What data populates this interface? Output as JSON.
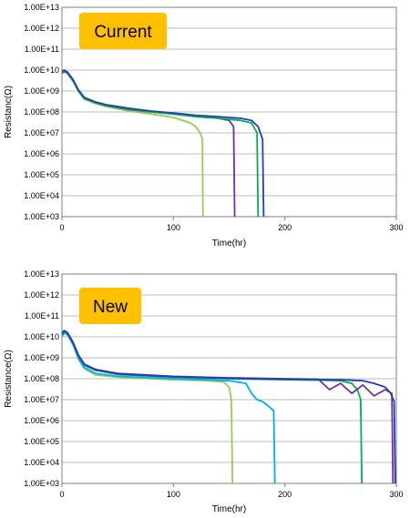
{
  "chart_data": [
    {
      "type": "line",
      "badge": "Current",
      "xlabel": "Time(hr)",
      "ylabel": "Resistanc(Ω)",
      "xlim": [
        0,
        300
      ],
      "x_ticks": [
        "0",
        "100",
        "200",
        "300"
      ],
      "ylim_log10": [
        3,
        13
      ],
      "y_ticks": [
        "1.00E+03",
        "1.00E+04",
        "1.00E+05",
        "1.00E+06",
        "1.00E+07",
        "1.00E+08",
        "1.00E+09",
        "1.00E+10",
        "1.00E+11",
        "1.00E+12",
        "1.00E+13"
      ],
      "grid": true,
      "series": [
        {
          "color": "#92d050",
          "x": [
            0,
            2,
            5,
            10,
            15,
            20,
            30,
            40,
            60,
            80,
            100,
            115,
            120,
            124,
            126,
            126.5
          ],
          "y": [
            8000000000,
            9000000000,
            7000000000,
            3000000000,
            900000000,
            400000000,
            250000000,
            180000000,
            110000000,
            80000000,
            55000000,
            30000000,
            20000000,
            10000000,
            5000000,
            1000
          ]
        },
        {
          "color": "#7030a0",
          "x": [
            0,
            2,
            5,
            10,
            15,
            20,
            30,
            40,
            60,
            80,
            100,
            120,
            140,
            150,
            154,
            155
          ],
          "y": [
            7000000000,
            8500000000,
            7000000000,
            3000000000,
            1000000000,
            450000000,
            280000000,
            200000000,
            130000000,
            100000000,
            80000000,
            60000000,
            50000000,
            40000000,
            20000000,
            1000
          ]
        },
        {
          "color": "#00b050",
          "x": [
            0,
            2,
            5,
            10,
            15,
            20,
            30,
            40,
            60,
            80,
            100,
            120,
            140,
            160,
            170,
            175,
            176
          ],
          "y": [
            8000000000,
            9500000000,
            7500000000,
            3200000000,
            1000000000,
            450000000,
            280000000,
            200000000,
            140000000,
            100000000,
            80000000,
            60000000,
            50000000,
            40000000,
            30000000,
            10000000,
            1000
          ]
        },
        {
          "color": "#1f3fbf",
          "x": [
            0,
            2,
            5,
            10,
            15,
            20,
            30,
            40,
            60,
            80,
            100,
            120,
            140,
            160,
            170,
            176,
            180,
            181
          ],
          "y": [
            9000000000,
            10000000000,
            8000000000,
            3500000000,
            1100000000,
            500000000,
            300000000,
            220000000,
            150000000,
            110000000,
            90000000,
            70000000,
            60000000,
            50000000,
            40000000,
            20000000,
            5000000,
            1000
          ]
        }
      ]
    },
    {
      "type": "line",
      "badge": "New",
      "xlabel": "Time(hr)",
      "ylabel": "Resistance(Ω)",
      "xlim": [
        0,
        300
      ],
      "x_ticks": [
        "0",
        "100",
        "200",
        "300"
      ],
      "ylim_log10": [
        3,
        13
      ],
      "y_ticks": [
        "1.00E+03",
        "1.00E+04",
        "1.00E+05",
        "1.00E+06",
        "1.00E+07",
        "1.00E+08",
        "1.00E+09",
        "1.00E+10",
        "1.00E+11",
        "1.00E+12",
        "1.00E+13"
      ],
      "grid": true,
      "series": [
        {
          "color": "#92d050",
          "x": [
            0,
            2,
            5,
            10,
            15,
            20,
            30,
            50,
            80,
            100,
            130,
            145,
            150,
            152,
            153
          ],
          "y": [
            10000000000,
            15000000000,
            12000000000,
            4000000000,
            800000000,
            300000000,
            150000000,
            120000000,
            100000000,
            90000000,
            80000000,
            70000000,
            40000000,
            10000000,
            1000
          ]
        },
        {
          "color": "#00b0f0",
          "x": [
            0,
            2,
            5,
            10,
            15,
            20,
            30,
            50,
            80,
            100,
            130,
            150,
            165,
            170,
            175,
            180,
            185,
            190,
            191
          ],
          "y": [
            10000000000,
            16000000000,
            13000000000,
            4500000000,
            900000000,
            350000000,
            180000000,
            130000000,
            110000000,
            100000000,
            90000000,
            80000000,
            60000000,
            20000000,
            10000000,
            8000000,
            5000000,
            3000000,
            1000
          ]
        },
        {
          "color": "#00b050",
          "x": [
            0,
            2,
            5,
            10,
            15,
            20,
            30,
            50,
            100,
            150,
            200,
            230,
            250,
            260,
            265,
            268,
            269
          ],
          "y": [
            12000000000,
            18000000000,
            15000000000,
            5000000000,
            1200000000,
            450000000,
            250000000,
            160000000,
            120000000,
            100000000,
            90000000,
            85000000,
            80000000,
            60000000,
            30000000,
            10000000,
            1000
          ]
        },
        {
          "color": "#7030a0",
          "x": [
            0,
            2,
            5,
            10,
            15,
            20,
            30,
            50,
            100,
            150,
            200,
            230,
            240,
            250,
            260,
            270,
            280,
            290,
            296,
            297
          ],
          "y": [
            15000000000,
            20000000000,
            16000000000,
            5500000000,
            1300000000,
            500000000,
            280000000,
            180000000,
            130000000,
            110000000,
            100000000,
            95000000,
            30000000,
            60000000,
            20000000,
            50000000,
            15000000,
            30000000,
            20000000,
            1000
          ]
        },
        {
          "color": "#1f3fbf",
          "x": [
            0,
            2,
            5,
            10,
            15,
            20,
            30,
            50,
            100,
            150,
            200,
            250,
            270,
            280,
            290,
            295,
            298,
            299
          ],
          "y": [
            14000000000,
            19000000000,
            15000000000,
            5200000000,
            1250000000,
            480000000,
            270000000,
            170000000,
            125000000,
            105000000,
            95000000,
            90000000,
            80000000,
            60000000,
            40000000,
            20000000,
            8000000,
            1000
          ]
        }
      ]
    }
  ]
}
